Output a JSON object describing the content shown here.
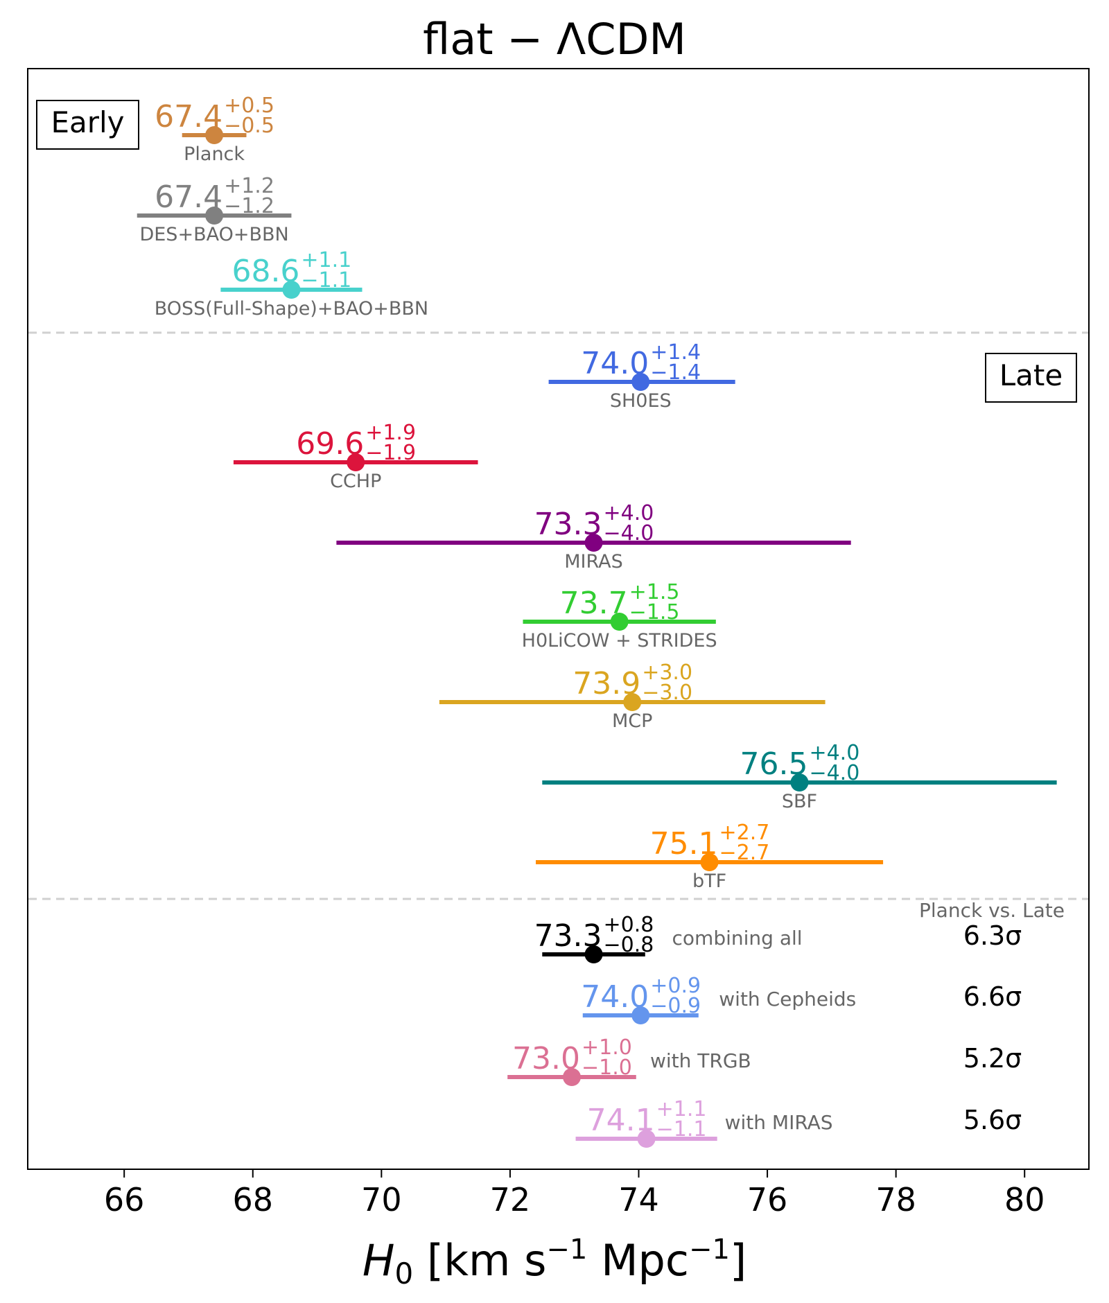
{
  "chart_data": {
    "type": "scatter",
    "title": "flat − ΛCDM",
    "xlabel": {
      "symbol": "H",
      "subscript": "0",
      "unit_open": "[km s",
      "exp1": "−1",
      "unit_mid": " Mpc",
      "exp2": "−1",
      "unit_close": "]"
    },
    "xlim": [
      64.5,
      81
    ],
    "xticks": [
      "66",
      "68",
      "70",
      "72",
      "74",
      "76",
      "78",
      "80"
    ],
    "grid": false,
    "group_labels": {
      "early": "Early",
      "late": "Late"
    },
    "sigma_header": "Planck vs. Late",
    "series": [
      {
        "name": "Planck",
        "group": "early",
        "value": "67.4",
        "plus": "+0.5",
        "minus": "−0.5",
        "x": 67.4,
        "lo": 66.9,
        "hi": 67.9,
        "color": "#cd853f"
      },
      {
        "name": "DES+BAO+BBN",
        "group": "early",
        "value": "67.4",
        "plus": "+1.2",
        "minus": "−1.2",
        "x": 67.4,
        "lo": 66.2,
        "hi": 68.6,
        "color": "#808080"
      },
      {
        "name": "BOSS(Full-Shape)+BAO+BBN",
        "group": "early",
        "value": "68.6",
        "plus": "+1.1",
        "minus": "−1.1",
        "x": 68.6,
        "lo": 67.5,
        "hi": 69.7,
        "color": "#48d1cc"
      },
      {
        "name": "SH0ES",
        "group": "late",
        "value": "74.0",
        "plus": "+1.4",
        "minus": "−1.4",
        "x": 74.03,
        "lo": 72.6,
        "hi": 75.5,
        "color": "#4169e1"
      },
      {
        "name": "CCHP",
        "group": "late",
        "value": "69.6",
        "plus": "+1.9",
        "minus": "−1.9",
        "x": 69.6,
        "lo": 67.7,
        "hi": 71.5,
        "color": "#dc143c"
      },
      {
        "name": "MIRAS",
        "group": "late",
        "value": "73.3",
        "plus": "+4.0",
        "minus": "−4.0",
        "x": 73.3,
        "lo": 69.3,
        "hi": 77.3,
        "color": "#800080"
      },
      {
        "name": "H0LiCOW + STRIDES",
        "group": "late",
        "value": "73.7",
        "plus": "+1.5",
        "minus": "−1.5",
        "x": 73.7,
        "lo": 72.2,
        "hi": 75.2,
        "color": "#32cd32"
      },
      {
        "name": "MCP",
        "group": "late",
        "value": "73.9",
        "plus": "+3.0",
        "minus": "−3.0",
        "x": 73.9,
        "lo": 70.9,
        "hi": 76.9,
        "color": "#daa520"
      },
      {
        "name": "SBF",
        "group": "late",
        "value": "76.5",
        "plus": "+4.0",
        "minus": "−4.0",
        "x": 76.5,
        "lo": 72.5,
        "hi": 80.5,
        "color": "#008080"
      },
      {
        "name": "bTF",
        "group": "late",
        "value": "75.1",
        "plus": "+2.7",
        "minus": "−2.7",
        "x": 75.1,
        "lo": 72.4,
        "hi": 77.8,
        "color": "#ff8c00"
      },
      {
        "name": "combining all",
        "group": "combined",
        "value": "73.3",
        "plus": "+0.8",
        "minus": "−0.8",
        "x": 73.3,
        "lo": 72.5,
        "hi": 74.1,
        "color": "#000000",
        "sigma": "6.3σ"
      },
      {
        "name": "with Cepheids",
        "group": "combined",
        "value": "74.0",
        "plus": "+0.9",
        "minus": "−0.9",
        "x": 74.03,
        "lo": 73.13,
        "hi": 74.93,
        "color": "#6495ed",
        "sigma": "6.6σ"
      },
      {
        "name": "with TRGB",
        "group": "combined",
        "value": "73.0",
        "plus": "+1.0",
        "minus": "−1.0",
        "x": 72.96,
        "lo": 71.96,
        "hi": 73.96,
        "color": "#db7093",
        "sigma": "5.2σ"
      },
      {
        "name": "with MIRAS",
        "group": "combined",
        "value": "74.1",
        "plus": "+1.1",
        "minus": "−1.1",
        "x": 74.12,
        "lo": 73.02,
        "hi": 75.22,
        "color": "#dda0dd",
        "sigma": "5.6σ"
      }
    ]
  }
}
